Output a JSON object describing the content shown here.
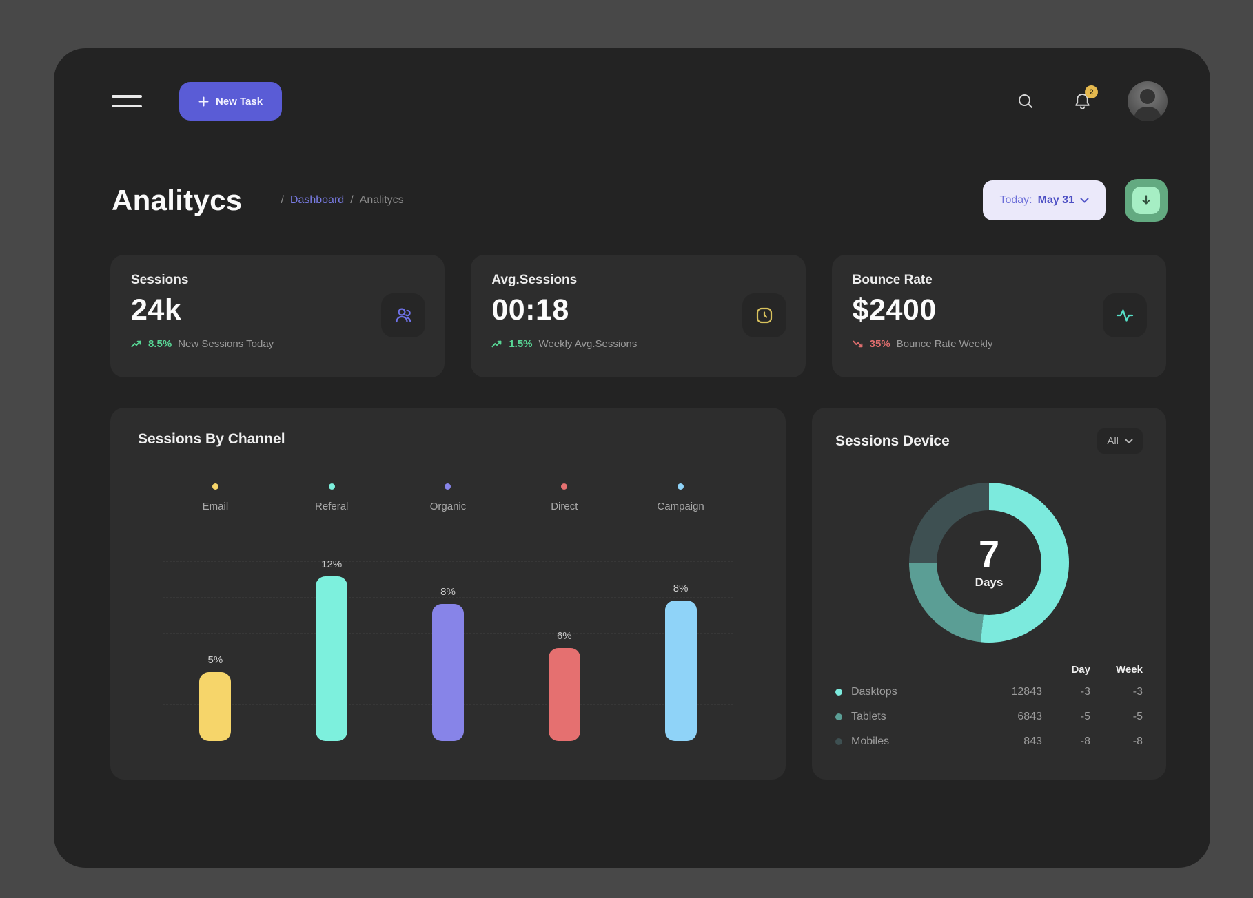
{
  "header": {
    "new_task_label": "New Task",
    "notification_count": "2"
  },
  "page": {
    "title": "Analitycs",
    "breadcrumb": {
      "sep1": "/",
      "dashboard": "Dashboard",
      "sep2": "/",
      "current": "Analitycs"
    },
    "date_filter": {
      "label": "Today:",
      "value": "May 31"
    }
  },
  "stats": [
    {
      "label": "Sessions",
      "value": "24k",
      "icon": "users-icon",
      "trend": "up",
      "trend_value": "8.5%",
      "trend_text": "New Sessions Today"
    },
    {
      "label": "Avg.Sessions",
      "value": "00:18",
      "icon": "clock-icon",
      "trend": "up",
      "trend_value": "1.5%",
      "trend_text": "Weekly Avg.Sessions"
    },
    {
      "label": "Bounce Rate",
      "value": "$2400",
      "icon": "activity-icon",
      "trend": "down",
      "trend_value": "35%",
      "trend_text": "Bounce Rate Weekly"
    }
  ],
  "chart_data": [
    {
      "type": "bar",
      "title": "Sessions By Channel",
      "categories": [
        "Email",
        "Referal",
        "Organic",
        "Direct",
        "Campaign"
      ],
      "values": [
        5,
        12,
        8,
        6,
        8
      ],
      "value_labels": [
        "5%",
        "12%",
        "8%",
        "6%",
        "8%"
      ],
      "unit": "%",
      "colors": [
        "#f6d56a",
        "#7df0dd",
        "#8784e8",
        "#e57070",
        "#8fd3f8"
      ],
      "bar_height_fractions": [
        0.385,
        0.92,
        0.765,
        0.52,
        0.785
      ],
      "ylim": [
        0,
        13
      ],
      "grid": "horizontal-dashed",
      "legend_position": "top-inline"
    },
    {
      "type": "donut",
      "title": "Sessions Device",
      "filter_label": "All",
      "center": {
        "value": "7",
        "label": "Days"
      },
      "table_headers": [
        "Day",
        "Week"
      ],
      "segments": [
        {
          "name": "Dasktops",
          "sessions": "12843",
          "day": "-3",
          "week": "-3",
          "color": "#7ceadd",
          "arc_deg": 186
        },
        {
          "name": "Tablets",
          "sessions": "6843",
          "day": "-5",
          "week": "-5",
          "color": "#5b9e95",
          "arc_deg": 84
        },
        {
          "name": "Mobiles",
          "sessions": "843",
          "day": "-8",
          "week": "-8",
          "color": "#3e5052",
          "arc_deg": 90
        }
      ]
    }
  ],
  "colors": {
    "page_background": "#484848",
    "window_background": "#232323",
    "card_background": "#2d2d2d",
    "accent_indigo": "#5a5cd6",
    "breadcrumb_link": "#797ce4",
    "trend_up_green": "#58d695",
    "trend_down_red": "#e06e6e",
    "badge_yellow": "#e5b94e",
    "download_green": "#63aa81"
  }
}
